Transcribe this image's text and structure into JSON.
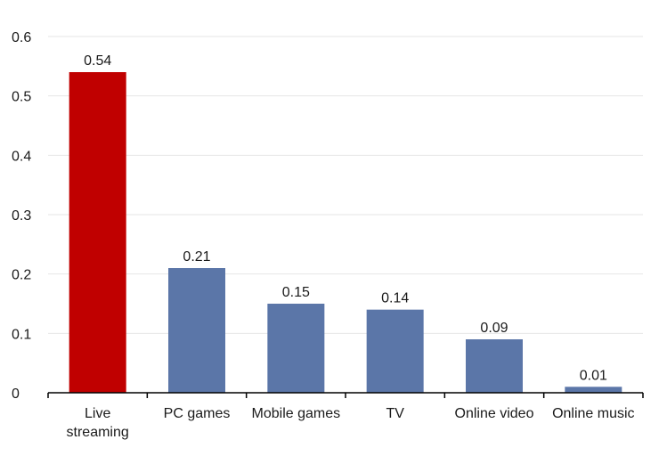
{
  "chart_data": {
    "type": "bar",
    "title": "",
    "xlabel": "",
    "ylabel": "",
    "categories": [
      [
        "Live",
        "streaming"
      ],
      [
        "PC games"
      ],
      [
        "Mobile games"
      ],
      [
        "TV"
      ],
      [
        "Online video"
      ],
      [
        "Online music"
      ]
    ],
    "values": [
      0.54,
      0.21,
      0.15,
      0.14,
      0.09,
      0.01
    ],
    "data_labels": [
      "0.54",
      "0.21",
      "0.15",
      "0.14",
      "0.09",
      "0.01"
    ],
    "y_ticks": [
      0,
      0.1,
      0.2,
      0.3,
      0.4,
      0.5,
      0.6
    ],
    "y_tick_labels": [
      "0",
      "0.1",
      "0.2",
      "0.3",
      "0.4",
      "0.5",
      "0.6"
    ],
    "ylim": [
      0,
      0.6
    ],
    "grid": true,
    "legend": false,
    "highlight_index": 0,
    "colors": {
      "highlight": "#c00000",
      "bar": "#5b76a8",
      "grid": "#e6e6e6",
      "axis": "#000000"
    }
  }
}
